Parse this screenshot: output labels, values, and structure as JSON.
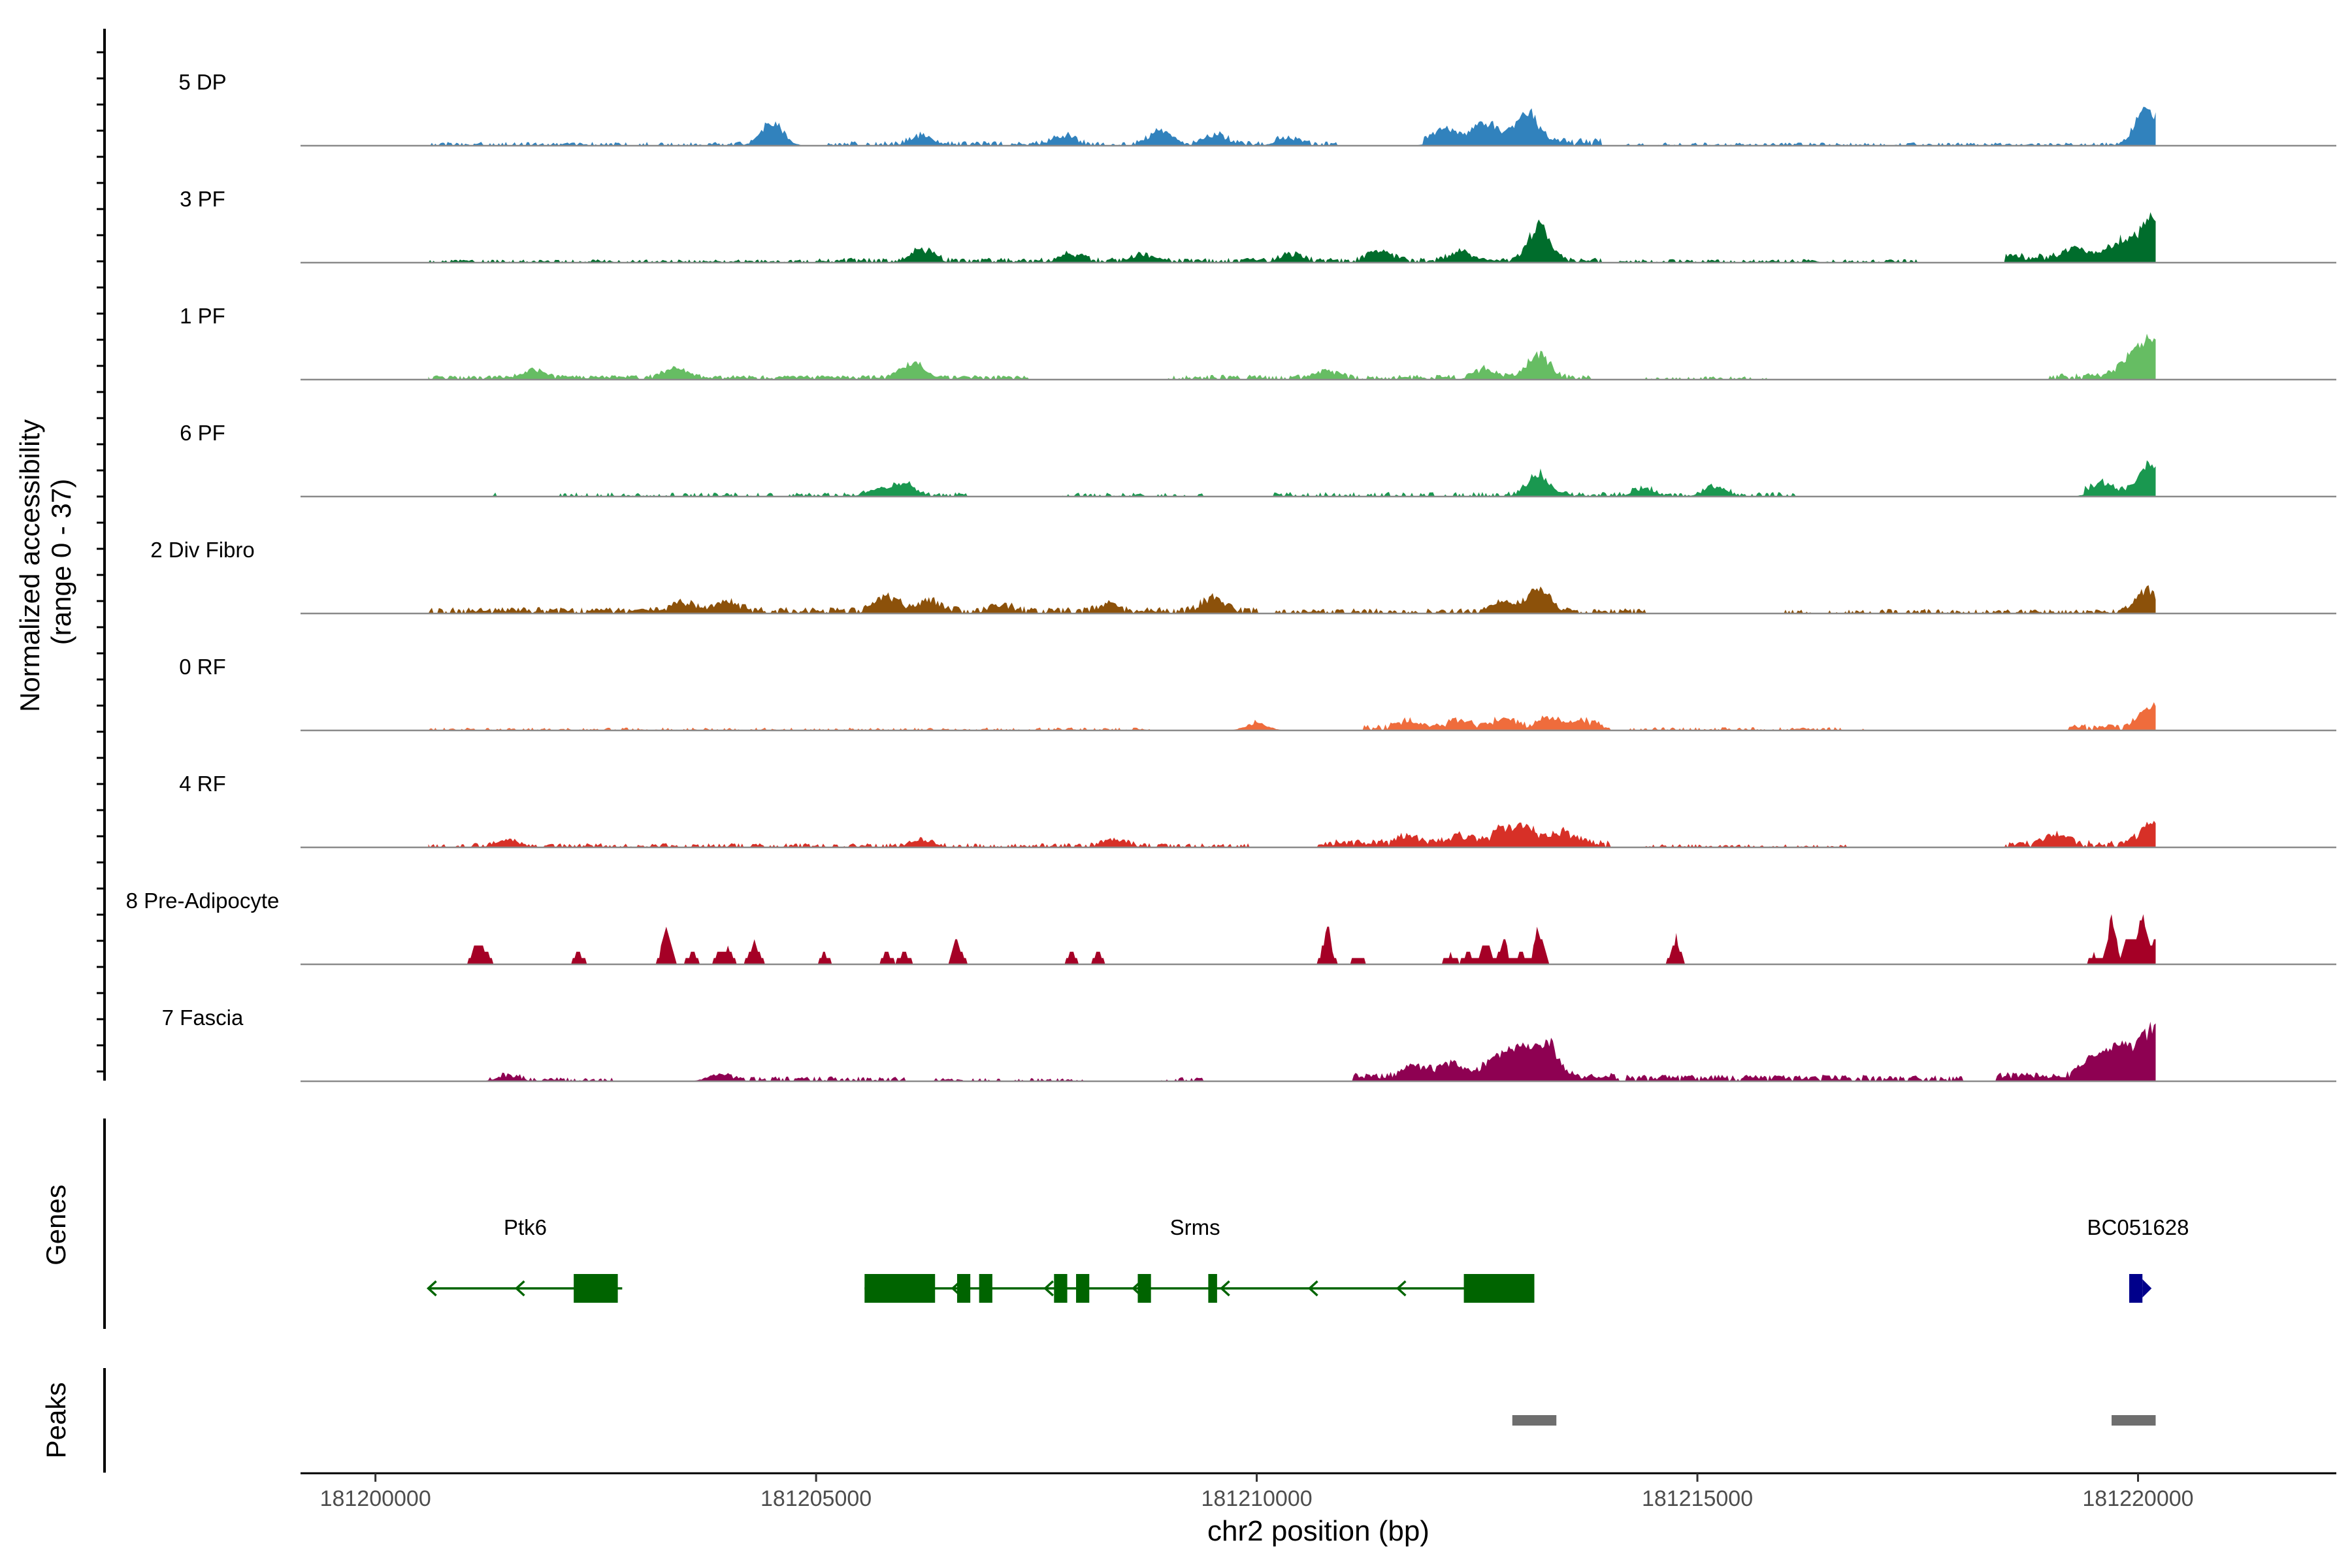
{
  "chart_data": {
    "type": "area",
    "title": "",
    "ylabel_line1": "Normalized accessibility",
    "ylabel_line2": "(range 0 - 37)",
    "y_range": [
      0,
      37
    ],
    "xlabel": "chr2 position (bp)",
    "xlim": [
      181199150,
      181222250
    ],
    "x_ticks": [
      181200000,
      181205000,
      181210000,
      181215000,
      181220000
    ],
    "x_tick_labels": [
      "181200000",
      "181205000",
      "181210000",
      "181215000",
      "181220000"
    ],
    "region": {
      "chrom": "chr2",
      "start": 181200600,
      "end": 181220200
    },
    "tracks": [
      {
        "name": "5 DP",
        "color": "#3182bd",
        "peaks": [
          [
            181204500,
            9
          ],
          [
            181213050,
            13
          ],
          [
            181212600,
            8
          ],
          [
            181212150,
            6
          ],
          [
            181220100,
            17
          ],
          [
            181208900,
            6
          ],
          [
            181206200,
            4
          ],
          [
            181207800,
            4
          ],
          [
            181209550,
            4
          ],
          [
            181210350,
            3
          ]
        ],
        "coverage": [
          [
            181200600,
            181204700,
            1.2,
            0.55
          ],
          [
            181205100,
            181210900,
            1.4,
            0.6
          ],
          [
            181211900,
            181213900,
            2.5,
            0.95
          ],
          [
            181214200,
            181220200,
            1.0,
            0.55
          ]
        ]
      },
      {
        "name": "3 PF",
        "color": "#006d2c",
        "peaks": [
          [
            181213200,
            14
          ],
          [
            181212300,
            4
          ],
          [
            181206200,
            5
          ],
          [
            181219300,
            4
          ],
          [
            181219800,
            7
          ],
          [
            181220150,
            17
          ],
          [
            181210400,
            3
          ],
          [
            181211400,
            5
          ],
          [
            181207900,
            3
          ],
          [
            181208700,
            3
          ]
        ],
        "coverage": [
          [
            181200600,
            181204900,
            1.0,
            0.6
          ],
          [
            181205000,
            181213900,
            1.5,
            0.75
          ],
          [
            181214100,
            181217500,
            1.1,
            0.6
          ],
          [
            181218500,
            181220200,
            3.0,
            1.0
          ]
        ]
      },
      {
        "name": "1 PF",
        "color": "#66bd63",
        "peaks": [
          [
            181206100,
            6
          ],
          [
            181203400,
            4
          ],
          [
            181213200,
            10
          ],
          [
            181219900,
            7
          ],
          [
            181220150,
            15
          ],
          [
            181212600,
            4
          ],
          [
            181201800,
            3
          ],
          [
            181210800,
            3
          ]
        ],
        "coverage": [
          [
            181200600,
            181207400,
            1.4,
            0.9
          ],
          [
            181209000,
            181213800,
            1.5,
            0.75
          ],
          [
            181214300,
            181215800,
            1.0,
            0.5
          ],
          [
            181219000,
            181220200,
            2.0,
            0.8
          ]
        ]
      },
      {
        "name": "6 PF",
        "color": "#1a9850",
        "peaks": [
          [
            181213200,
            9
          ],
          [
            181206000,
            5
          ],
          [
            181205700,
            3
          ],
          [
            181220150,
            12
          ],
          [
            181219600,
            4
          ],
          [
            181214400,
            3
          ],
          [
            181215200,
            4
          ]
        ],
        "coverage": [
          [
            181201300,
            181201500,
            1.6,
            0.4
          ],
          [
            181202100,
            181206700,
            1.3,
            0.45
          ],
          [
            181207800,
            181209400,
            1.2,
            0.4
          ],
          [
            181210200,
            181216100,
            1.4,
            0.5
          ],
          [
            181219400,
            181220200,
            2.5,
            1.0
          ]
        ]
      },
      {
        "name": "2 Div Fibro",
        "color": "#8c510a",
        "peaks": [
          [
            181205800,
            7
          ],
          [
            181206300,
            5
          ],
          [
            181209500,
            6
          ],
          [
            181203500,
            4
          ],
          [
            181204000,
            4
          ],
          [
            181213200,
            10
          ],
          [
            181212800,
            4
          ],
          [
            181220100,
            10
          ],
          [
            181207100,
            3
          ],
          [
            181208300,
            3
          ]
        ],
        "coverage": [
          [
            181200600,
            181210000,
            2.0,
            0.8
          ],
          [
            181210200,
            181214400,
            1.6,
            0.7
          ],
          [
            181216000,
            181216300,
            1.2,
            0.4
          ],
          [
            181216500,
            181220200,
            1.4,
            0.55
          ]
        ]
      },
      {
        "name": "0 RF",
        "color": "#ef6c3c",
        "peaks": [
          [
            181212800,
            4
          ],
          [
            181213300,
            4
          ],
          [
            181213700,
            3
          ],
          [
            181220150,
            10
          ],
          [
            181210000,
            3
          ],
          [
            181211700,
            3
          ],
          [
            181212300,
            3
          ]
        ],
        "coverage": [
          [
            181200600,
            181208800,
            0.9,
            0.5
          ],
          [
            181209900,
            181210100,
            1.2,
            0.4
          ],
          [
            181211200,
            181214000,
            2.0,
            0.9
          ],
          [
            181214200,
            181216900,
            1.0,
            0.55
          ],
          [
            181219200,
            181220200,
            2.0,
            0.8
          ]
        ]
      },
      {
        "name": "4 RF",
        "color": "#d73027",
        "peaks": [
          [
            181212800,
            7
          ],
          [
            181213100,
            6
          ],
          [
            181213500,
            5
          ],
          [
            181211700,
            3
          ],
          [
            181212300,
            4
          ],
          [
            181201500,
            3
          ],
          [
            181219100,
            4
          ],
          [
            181220150,
            9
          ],
          [
            181206200,
            3
          ],
          [
            181208400,
            3
          ]
        ],
        "coverage": [
          [
            181200600,
            181209900,
            1.3,
            0.6
          ],
          [
            181210700,
            181214000,
            2.5,
            0.9
          ],
          [
            181214400,
            181216700,
            1.0,
            0.5
          ],
          [
            181218500,
            181220200,
            2.2,
            0.8
          ]
        ]
      },
      {
        "name": "8 Pre-Adipocyte",
        "color": "#a50026",
        "peaks": [
          [
            181201150,
            8
          ],
          [
            181201250,
            5
          ],
          [
            181202300,
            5
          ],
          [
            181203300,
            14
          ],
          [
            181203600,
            5
          ],
          [
            181203900,
            4
          ],
          [
            181204300,
            10
          ],
          [
            181204000,
            6
          ],
          [
            181205100,
            4
          ],
          [
            181205800,
            5
          ],
          [
            181206000,
            5
          ],
          [
            181206600,
            10
          ],
          [
            181207900,
            5
          ],
          [
            181208200,
            5
          ],
          [
            181210800,
            14
          ],
          [
            181211150,
            4
          ],
          [
            181212200,
            5
          ],
          [
            181212400,
            5
          ],
          [
            181212600,
            10
          ],
          [
            181212800,
            9
          ],
          [
            181213000,
            5
          ],
          [
            181213200,
            14
          ],
          [
            181214750,
            11
          ],
          [
            181219500,
            5
          ],
          [
            181219700,
            18
          ],
          [
            181219900,
            12
          ],
          [
            181220050,
            20
          ],
          [
            181220200,
            10
          ]
        ],
        "coverage": []
      },
      {
        "name": "7 Fascia",
        "color": "#8e0152",
        "peaks": [
          [
            181213000,
            12
          ],
          [
            181213300,
            14
          ],
          [
            181212700,
            9
          ],
          [
            181212200,
            6
          ],
          [
            181211800,
            5
          ],
          [
            181219500,
            9
          ],
          [
            181219800,
            14
          ],
          [
            181220150,
            20
          ],
          [
            181203900,
            3
          ],
          [
            181201500,
            2
          ]
        ],
        "coverage": [
          [
            181201300,
            181202700,
            1.3,
            0.6
          ],
          [
            181204000,
            181206000,
            1.5,
            0.7
          ],
          [
            181206300,
            181208100,
            1.0,
            0.45
          ],
          [
            181208900,
            181209400,
            1.2,
            0.4
          ],
          [
            181211100,
            181214100,
            2.6,
            1.0
          ],
          [
            181214200,
            181218000,
            2.0,
            0.85
          ],
          [
            181218400,
            181220200,
            2.8,
            1.0
          ]
        ]
      }
    ],
    "genes_label": "Genes",
    "genes": [
      {
        "name": "Ptk6",
        "label_x": 181201700,
        "strand": "-",
        "start": 181200600,
        "end": 181202800,
        "color": "#006400",
        "exons": [
          [
            181202250,
            181202750
          ]
        ],
        "arrows": [
          181200600,
          181201600
        ]
      },
      {
        "name": "Srms",
        "label_x": 181209300,
        "strand": "-",
        "start": 181205550,
        "end": 181213150,
        "color": "#006400",
        "exons": [
          [
            181205550,
            181206350
          ],
          [
            181206600,
            181206750
          ],
          [
            181206850,
            181207000
          ],
          [
            181207700,
            181207850
          ],
          [
            181207950,
            181208100
          ],
          [
            181208650,
            181208800
          ],
          [
            181209450,
            181209550
          ],
          [
            181212350,
            181213150
          ]
        ],
        "arrows": [
          181206550,
          181207600,
          181208600,
          181209600,
          181210600,
          181211600
        ]
      },
      {
        "name": "BC051628",
        "label_x": 181220000,
        "strand": "+",
        "start": 181219900,
        "end": 181220050,
        "color": "#00008b",
        "exons": [
          [
            181219900,
            181220050
          ]
        ],
        "arrows": []
      }
    ],
    "peaks_label": "Peaks",
    "peak_regions": [
      [
        181212900,
        181213400
      ],
      [
        181219700,
        181220200
      ]
    ]
  }
}
